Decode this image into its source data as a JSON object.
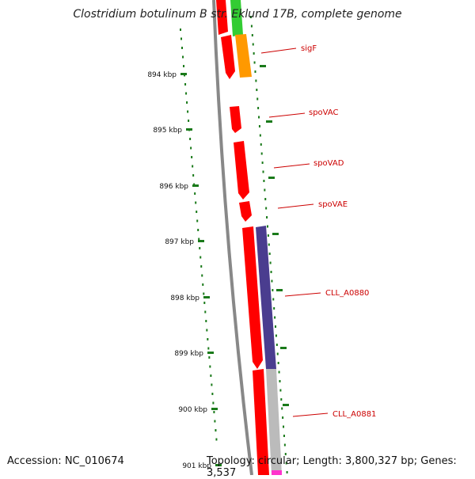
{
  "title": "Clostridium botulinum B str. Eklund 17B, complete genome",
  "accession": "Accession: NC_010674",
  "topology": "Topology: circular; Length: 3,800,327 bp; Genes: 3,537",
  "ruler_ticks": [
    "894 kbp",
    "895 kbp",
    "896 kbp",
    "897 kbp",
    "898 kbp",
    "899 kbp",
    "900 kbp",
    "901 kbp"
  ],
  "gene_labels": [
    "sigF",
    "spoVAC",
    "spoVAD",
    "spoVAE",
    "CLL_A0880",
    "CLL_A0881"
  ],
  "colors": {
    "backbone": "#888888",
    "gene_red": "#ff0000",
    "gene_green": "#33cc33",
    "gene_orange": "#ff9900",
    "gene_purple": "#4a3d8f",
    "gene_gray": "#bbbbbb",
    "gene_pink": "#ff33cc",
    "tick": "#1a7a1a",
    "label": "#cc0000"
  }
}
